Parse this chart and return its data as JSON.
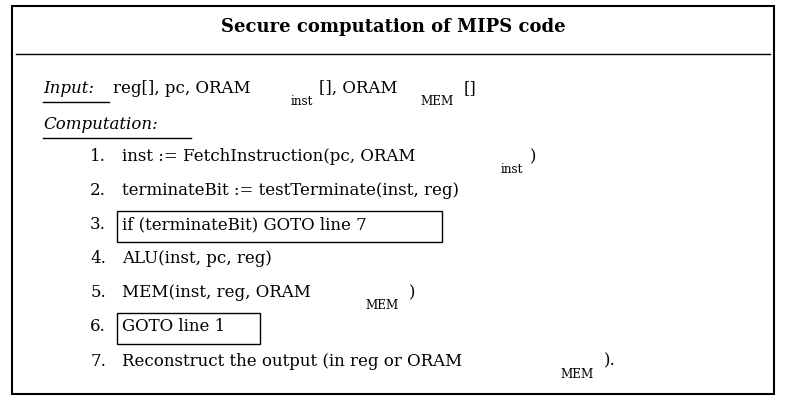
{
  "title": "Secure computation of MIPS code",
  "title_fontsize": 13,
  "body_fontsize": 12,
  "background_color": "#ffffff",
  "border_color": "#000000",
  "figsize": [
    7.86,
    4.0
  ],
  "dpi": 100,
  "items": [
    {
      "num": "1.",
      "boxed": false,
      "parts": [
        [
          "inst := FetchInstruction(pc, ORAM",
          false
        ],
        [
          "inst",
          true
        ],
        [
          ")",
          false
        ]
      ]
    },
    {
      "num": "2.",
      "boxed": false,
      "parts": [
        [
          "terminateBit := testTerminate(inst, reg)",
          false
        ]
      ]
    },
    {
      "num": "3.",
      "boxed": true,
      "parts": [
        [
          "if (terminateBit) GOTO line 7",
          false
        ]
      ]
    },
    {
      "num": "4.",
      "boxed": false,
      "parts": [
        [
          "ALU(inst, pc, reg)",
          false
        ]
      ]
    },
    {
      "num": "5.",
      "boxed": false,
      "parts": [
        [
          "MEM(inst, reg, ORAM",
          false
        ],
        [
          "MEM",
          true
        ],
        [
          ")",
          false
        ]
      ]
    },
    {
      "num": "6.",
      "boxed": true,
      "parts": [
        [
          "GOTO line 1",
          false
        ]
      ]
    },
    {
      "num": "7.",
      "boxed": false,
      "parts": [
        [
          "Reconstruct the output (in reg or ORAM",
          false
        ],
        [
          "MEM",
          true
        ],
        [
          ").",
          false
        ]
      ]
    }
  ]
}
